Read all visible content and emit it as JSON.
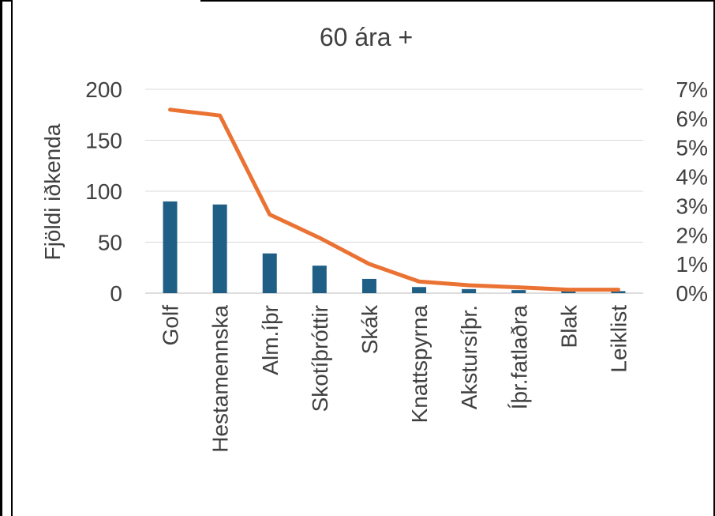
{
  "chart_data": {
    "type": "bar",
    "title": "60 ára +",
    "ylabel": "Fjöldi iðkenda",
    "ylabel_right": "",
    "categories": [
      "Golf",
      "Hestamennska",
      "Alm.íþr",
      "Skotíþróttir",
      "Skák",
      "Knattspyrna",
      "Akstursíþr.",
      "Íþr.fatlaðra",
      "Blak",
      "Leiklist"
    ],
    "series": [
      {
        "type": "bar",
        "axis": "left",
        "color": "#1f5f86",
        "values": [
          90,
          87,
          39,
          27,
          14,
          6,
          4,
          3,
          2,
          2
        ]
      },
      {
        "type": "line",
        "axis": "right",
        "color": "#ea7232",
        "values": [
          0.063,
          0.061,
          0.027,
          0.019,
          0.01,
          0.004,
          0.0027,
          0.002,
          0.0012,
          0.0012
        ]
      }
    ],
    "ylim": [
      0,
      200
    ],
    "yticks": [
      "0",
      "50",
      "100",
      "150",
      "200"
    ],
    "ylim_right": [
      0,
      0.07
    ],
    "yticks_right": [
      "0%",
      "1%",
      "2%",
      "3%",
      "4%",
      "5%",
      "6%",
      "7%"
    ],
    "grid": true,
    "legend": "none"
  }
}
